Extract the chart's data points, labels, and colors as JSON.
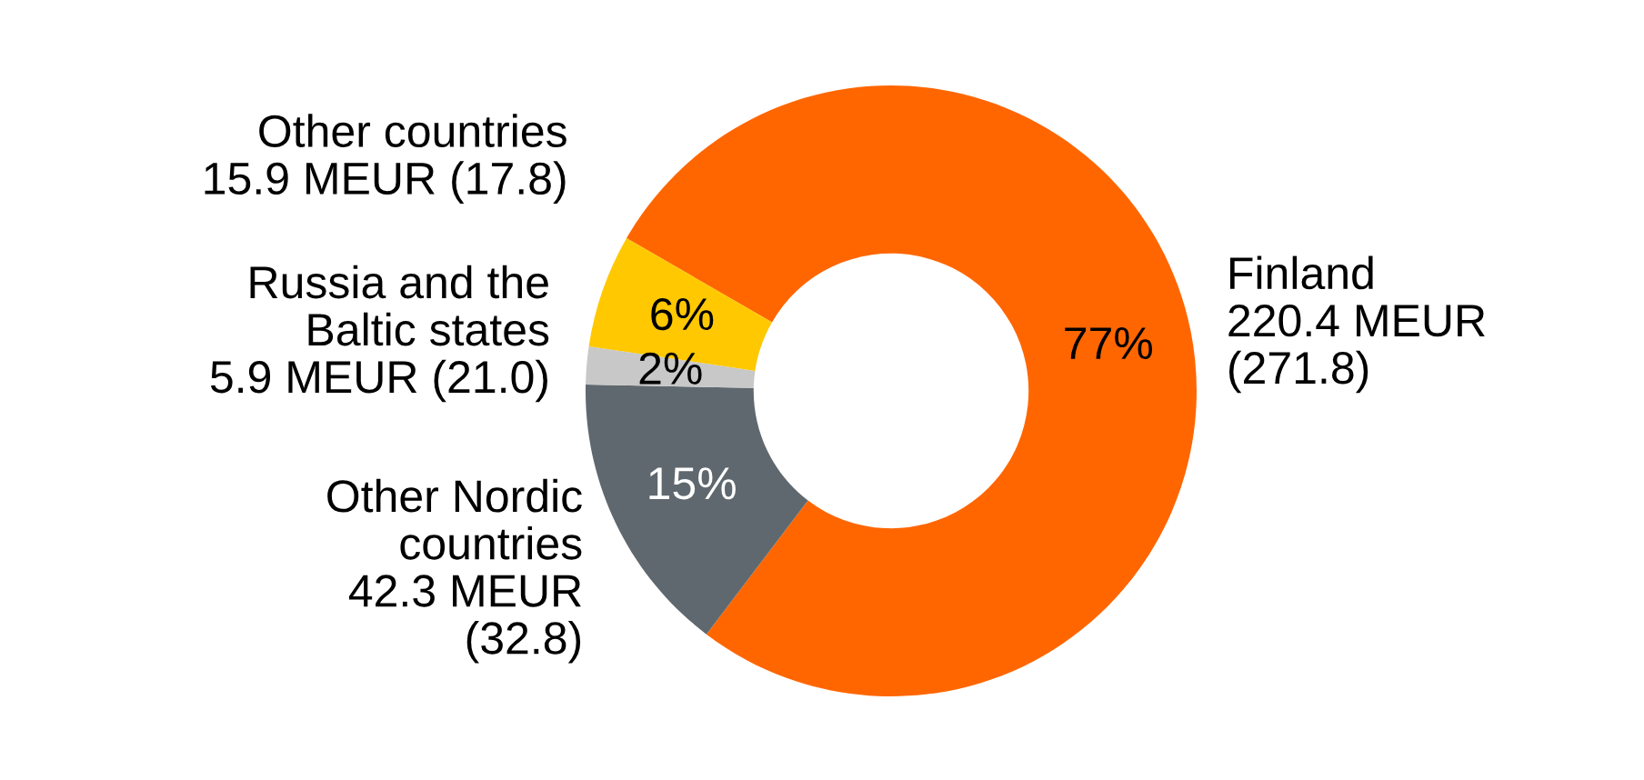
{
  "chart_data": {
    "type": "donut",
    "categories": [
      "Finland\n220.4 MEUR\n(271.8)",
      "Other Nordic\ncountries\n42.3 MEUR\n(32.8)",
      "Russia and the\nBaltic states\n5.9 MEUR (21.0)",
      "Other countries\n15.9 MEUR (17.8)"
    ],
    "values": [
      77,
      15,
      2,
      6
    ],
    "colors": [
      "#ff6600",
      "#5f686e",
      "#c8c8c8",
      "#ffc800"
    ],
    "value_labels": [
      "77%",
      "15%",
      "2%",
      "6%"
    ]
  }
}
